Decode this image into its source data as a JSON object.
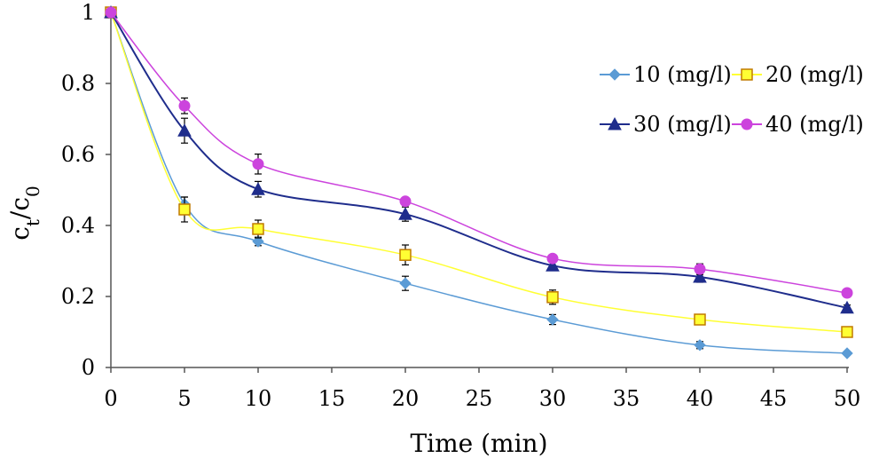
{
  "chart_data": {
    "type": "line",
    "title": "",
    "xlabel": "Time (min)",
    "ylabel_main": "c",
    "ylabel_sub1": "t",
    "ylabel_slash": "/c",
    "ylabel_sub2": "0",
    "xlim": [
      0,
      50
    ],
    "ylim": [
      0,
      1
    ],
    "x_ticks": [
      0,
      5,
      10,
      15,
      20,
      25,
      30,
      35,
      40,
      45,
      50
    ],
    "y_ticks": [
      0,
      0.2,
      0.4,
      0.6,
      0.8,
      1
    ],
    "y_tick_labels": [
      "0",
      "0.2",
      "0.4",
      "0.6",
      "0.8",
      "1"
    ],
    "grid": false,
    "legend_position": "top-right",
    "series": [
      {
        "name": "10 (mg/l)",
        "color": "#5b9bd5",
        "marker": "diamond",
        "x": [
          0,
          5,
          10,
          20,
          30,
          40,
          50
        ],
        "y": [
          1.0,
          0.46,
          0.355,
          0.237,
          0.135,
          0.063,
          0.04
        ],
        "err": [
          0,
          0.02,
          0.012,
          0.02,
          0.014,
          0.01,
          0.005
        ]
      },
      {
        "name": "20 (mg/l)",
        "color": "#ffff33",
        "marker": "square",
        "x": [
          0,
          5,
          10,
          20,
          30,
          40,
          50
        ],
        "y": [
          1.0,
          0.445,
          0.39,
          0.317,
          0.198,
          0.135,
          0.1
        ],
        "err": [
          0,
          0.035,
          0.025,
          0.028,
          0.02,
          0.012,
          0.012
        ]
      },
      {
        "name": "30 (mg/l)",
        "color": "#1f2d8c",
        "marker": "triangle",
        "x": [
          0,
          5,
          10,
          20,
          30,
          40,
          50
        ],
        "y": [
          1.0,
          0.667,
          0.502,
          0.432,
          0.287,
          0.255,
          0.168
        ],
        "err": [
          0,
          0.035,
          0.022,
          0.02,
          0.01,
          0.015,
          0.008
        ]
      },
      {
        "name": "40 (mg/l)",
        "color": "#cc44dd",
        "marker": "circle",
        "x": [
          0,
          5,
          10,
          20,
          30,
          40,
          50
        ],
        "y": [
          1.0,
          0.737,
          0.573,
          0.468,
          0.307,
          0.277,
          0.21
        ],
        "err": [
          0,
          0.022,
          0.028,
          0.008,
          0.008,
          0.015,
          0.004
        ]
      }
    ]
  }
}
